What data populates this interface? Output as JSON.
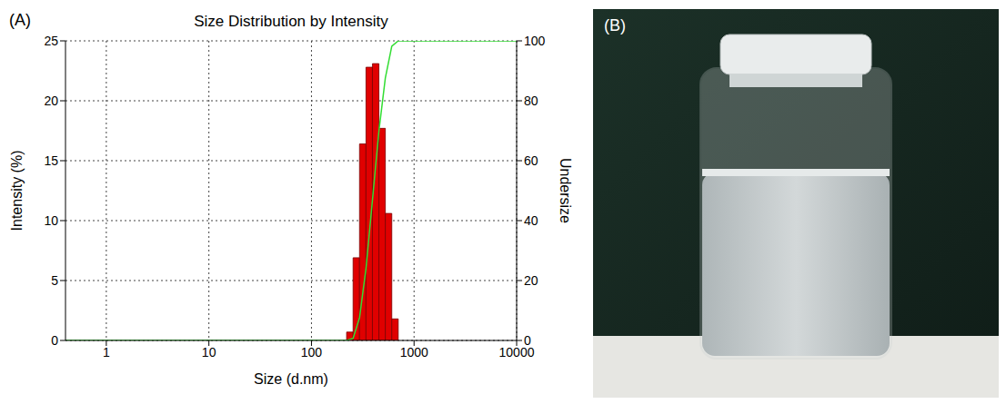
{
  "chart_data": {
    "type": "histogram",
    "panel": "(A)",
    "title": "Size Distribution by Intensity",
    "x_label": "Size (d.nm)",
    "y_label": "Intensity (%)",
    "y2_label": "Undersize",
    "log": "x",
    "grid": true,
    "xlim": [
      0.4,
      10000
    ],
    "xticks": [
      1,
      10,
      100,
      1000,
      10000
    ],
    "ylim": [
      0,
      25
    ],
    "yticks": [
      0,
      5,
      10,
      15,
      20,
      25
    ],
    "y2lim": [
      0,
      100
    ],
    "y2ticks": [
      0,
      20,
      40,
      60,
      80,
      100
    ],
    "bins": [
      220,
      254.5,
      294.1,
      339.9,
      392.9,
      454.2,
      524.8,
      606.6,
      701
    ],
    "counts": [
      0.7,
      6.9,
      16.4,
      22.8,
      23.1,
      17.7,
      10.6,
      1.8
    ],
    "color": "#e00000",
    "series": [
      {
        "type": "line",
        "axis": "y2",
        "color": "#33dd33",
        "x": [
          0.4,
          220,
          254.5,
          294.1,
          339.9,
          392.9,
          454.2,
          524.8,
          606.6,
          701,
          10000
        ],
        "values": [
          0,
          0,
          0.7,
          7.6,
          24,
          46.8,
          69.9,
          87.6,
          98.2,
          100,
          100
        ]
      }
    ]
  },
  "photo": {
    "panel": "(B)"
  }
}
